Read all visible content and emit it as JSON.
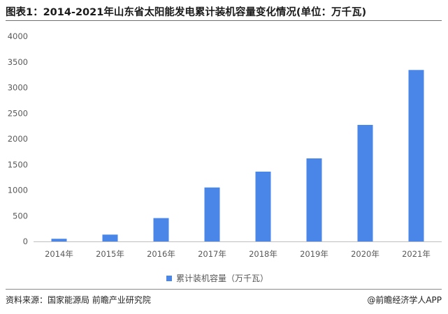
{
  "title": "图表1：2014-2021年山东省太阳能发电累计装机容量变化情况(单位：万千瓦)",
  "source": "资料来源：国家能源局 前瞻产业研究院",
  "brand": {
    "icon": "at-icon",
    "symbol": "@",
    "text": "前瞻经济学人APP"
  },
  "colors": {
    "bar": "#4a86e8",
    "axis": "#bfbfbf",
    "text": "#595959"
  },
  "chart_data": {
    "type": "bar",
    "categories": [
      "2014年",
      "2015年",
      "2016年",
      "2017年",
      "2018年",
      "2019年",
      "2020年",
      "2021年"
    ],
    "series": [
      {
        "name": "累计装机容量（万千瓦）",
        "values": [
          52,
          133,
          455,
          1052,
          1361,
          1619,
          2272,
          3343
        ]
      }
    ],
    "yticks": [
      0,
      500,
      1000,
      1500,
      2000,
      2500,
      3000,
      3500,
      4000
    ],
    "ylim": [
      0,
      4000
    ],
    "grid": false,
    "legend": "bottom-center"
  }
}
